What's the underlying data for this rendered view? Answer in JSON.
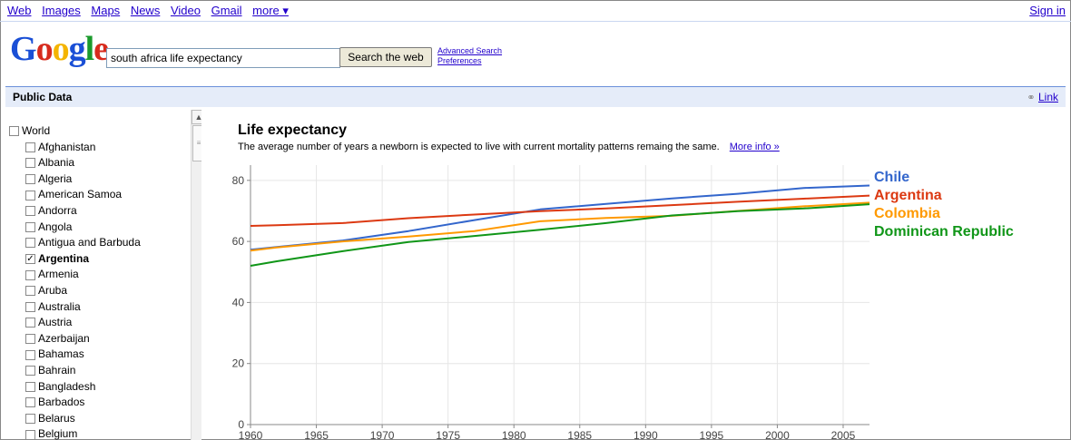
{
  "topnav": {
    "items": [
      {
        "label": "Web"
      },
      {
        "label": "Images"
      },
      {
        "label": "Maps"
      },
      {
        "label": "News"
      },
      {
        "label": "Video"
      },
      {
        "label": "Gmail"
      },
      {
        "label": "more ▾"
      }
    ],
    "sign_in": "Sign in"
  },
  "logo": {
    "text": "Google",
    "colors": [
      "#1a4fd6",
      "#d72b1d",
      "#f4b400",
      "#1a4fd6",
      "#1a9a2c",
      "#d72b1d"
    ]
  },
  "search": {
    "value": "south africa life expectancy",
    "button_label": "Search the web",
    "advanced": "Advanced Search",
    "preferences": "Preferences"
  },
  "public_data": {
    "title": "Public Data",
    "link_label": "Link"
  },
  "sidebar": {
    "world": "World",
    "countries": [
      {
        "label": "Afghanistan",
        "checked": false
      },
      {
        "label": "Albania",
        "checked": false
      },
      {
        "label": "Algeria",
        "checked": false
      },
      {
        "label": "American Samoa",
        "checked": false
      },
      {
        "label": "Andorra",
        "checked": false
      },
      {
        "label": "Angola",
        "checked": false
      },
      {
        "label": "Antigua and Barbuda",
        "checked": false
      },
      {
        "label": "Argentina",
        "checked": true
      },
      {
        "label": "Armenia",
        "checked": false
      },
      {
        "label": "Aruba",
        "checked": false
      },
      {
        "label": "Australia",
        "checked": false
      },
      {
        "label": "Austria",
        "checked": false
      },
      {
        "label": "Azerbaijan",
        "checked": false
      },
      {
        "label": "Bahamas",
        "checked": false
      },
      {
        "label": "Bahrain",
        "checked": false
      },
      {
        "label": "Bangladesh",
        "checked": false
      },
      {
        "label": "Barbados",
        "checked": false
      },
      {
        "label": "Belarus",
        "checked": false
      },
      {
        "label": "Belgium",
        "checked": false
      }
    ]
  },
  "chart": {
    "title": "Life expectancy",
    "subtitle": "The average number of years a newborn is expected to live with current mortality patterns remaing the same.",
    "more_info": "More info »"
  },
  "chart_data": {
    "type": "line",
    "title": "Life expectancy",
    "xlabel": "",
    "ylabel": "",
    "xlim": [
      1960,
      2007
    ],
    "ylim": [
      0,
      85
    ],
    "x_ticks": [
      1960,
      1965,
      1970,
      1975,
      1980,
      1985,
      1990,
      1995,
      2000,
      2005
    ],
    "y_ticks": [
      0,
      20,
      40,
      60,
      80
    ],
    "grid": true,
    "legend": "right",
    "x": [
      1960,
      1962,
      1967,
      1972,
      1977,
      1982,
      1987,
      1992,
      1997,
      2002,
      2007
    ],
    "series": [
      {
        "name": "Chile",
        "color": "#3366cc",
        "values": [
          57.3,
          58.2,
          60.3,
          63.4,
          67.0,
          70.5,
          72.3,
          74.1,
          75.6,
          77.5,
          78.3
        ]
      },
      {
        "name": "Argentina",
        "color": "#dc3912",
        "values": [
          65.1,
          65.3,
          66.0,
          67.6,
          68.8,
          69.9,
          70.8,
          71.9,
          73.0,
          74.0,
          75.0
        ]
      },
      {
        "name": "Colombia",
        "color": "#ff9900",
        "values": [
          57.0,
          58.0,
          60.0,
          61.6,
          63.4,
          66.6,
          67.7,
          68.4,
          70.0,
          71.5,
          72.7
        ]
      },
      {
        "name": "Dominican Republic",
        "color": "#109618",
        "values": [
          52.0,
          53.5,
          56.8,
          59.8,
          61.8,
          63.8,
          66.0,
          68.5,
          69.9,
          70.8,
          72.2
        ]
      }
    ]
  }
}
